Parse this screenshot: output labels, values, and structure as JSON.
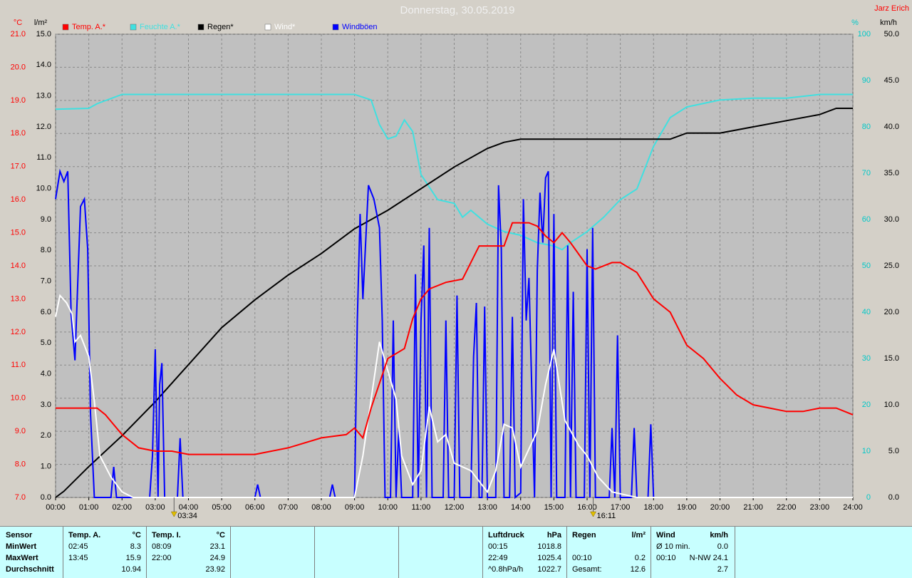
{
  "chart_data": {
    "type": "line",
    "title": "Donnerstag, 30.05.2019",
    "author": "Jarz Erich",
    "y_unit": "°C",
    "y2_unit": "%",
    "y3_unit": "l/m²",
    "y4_unit": "km/h",
    "xlim": [
      0,
      1440
    ],
    "xticks": [
      {
        "value": 0,
        "label": "00:00"
      },
      {
        "value": 60,
        "label": "01:00"
      },
      {
        "value": 120,
        "label": "02:00"
      },
      {
        "value": 180,
        "label": "03:00"
      },
      {
        "value": 240,
        "label": "04:00"
      },
      {
        "value": 300,
        "label": "05:00"
      },
      {
        "value": 360,
        "label": "06:00"
      },
      {
        "value": 420,
        "label": "07:00"
      },
      {
        "value": 480,
        "label": "08:00"
      },
      {
        "value": 540,
        "label": "09:00"
      },
      {
        "value": 600,
        "label": "10:00"
      },
      {
        "value": 660,
        "label": "11:00"
      },
      {
        "value": 720,
        "label": "12:00"
      },
      {
        "value": 780,
        "label": "13:00"
      },
      {
        "value": 840,
        "label": "14:00"
      },
      {
        "value": 900,
        "label": "15:00"
      },
      {
        "value": 960,
        "label": "16:00"
      },
      {
        "value": 1020,
        "label": "17:00"
      },
      {
        "value": 1080,
        "label": "18:00"
      },
      {
        "value": 1140,
        "label": "19:00"
      },
      {
        "value": 1200,
        "label": "20:00"
      },
      {
        "value": 1260,
        "label": "21:00"
      },
      {
        "value": 1320,
        "label": "22:00"
      },
      {
        "value": 1380,
        "label": "23:00"
      },
      {
        "value": 1440,
        "label": "24:00"
      }
    ],
    "ylim": [
      7,
      21
    ],
    "yticks": [
      {
        "value": 7,
        "label": "7.0"
      },
      {
        "value": 8,
        "label": "8.0"
      },
      {
        "value": 9,
        "label": "9.0"
      },
      {
        "value": 10,
        "label": "10.0"
      },
      {
        "value": 11,
        "label": "11.0"
      },
      {
        "value": 12,
        "label": "12.0"
      },
      {
        "value": 13,
        "label": "13.0"
      },
      {
        "value": 14,
        "label": "14.0"
      },
      {
        "value": 15,
        "label": "15.0"
      },
      {
        "value": 16,
        "label": "16.0"
      },
      {
        "value": 17,
        "label": "17.0"
      },
      {
        "value": 18,
        "label": "18.0"
      },
      {
        "value": 19,
        "label": "19.0"
      },
      {
        "value": 20,
        "label": "20.0"
      },
      {
        "value": 21,
        "label": "21.0"
      }
    ],
    "y2lim": [
      0,
      100
    ],
    "y2ticks": [
      0,
      10,
      20,
      30,
      40,
      50,
      60,
      70,
      80,
      90,
      100
    ],
    "y3lim": [
      0,
      15
    ],
    "y3ticks": [
      {
        "value": 0,
        "label": "0.0"
      },
      {
        "value": 1,
        "label": "1.0"
      },
      {
        "value": 2,
        "label": "2.0"
      },
      {
        "value": 3,
        "label": "3.0"
      },
      {
        "value": 4,
        "label": "4.0"
      },
      {
        "value": 5,
        "label": "5.0"
      },
      {
        "value": 6,
        "label": "6.0"
      },
      {
        "value": 7,
        "label": "7.0"
      },
      {
        "value": 8,
        "label": "8.0"
      },
      {
        "value": 9,
        "label": "9.0"
      },
      {
        "value": 10,
        "label": "10.0"
      },
      {
        "value": 11,
        "label": "11.0"
      },
      {
        "value": 12,
        "label": "12.0"
      },
      {
        "value": 13,
        "label": "13.0"
      },
      {
        "value": 14,
        "label": "14.0"
      },
      {
        "value": 15,
        "label": "15.0"
      }
    ],
    "y4lim": [
      0,
      50
    ],
    "y4ticks": [
      {
        "value": 0,
        "label": "0.0"
      },
      {
        "value": 5,
        "label": "5.0"
      },
      {
        "value": 10,
        "label": "10.0"
      },
      {
        "value": 15,
        "label": "15.0"
      },
      {
        "value": 20,
        "label": "20.0"
      },
      {
        "value": 25,
        "label": "25.0"
      },
      {
        "value": 30,
        "label": "30.0"
      },
      {
        "value": 35,
        "label": "35.0"
      },
      {
        "value": 40,
        "label": "40.0"
      },
      {
        "value": 45,
        "label": "45.0"
      },
      {
        "value": 50,
        "label": "50.0"
      }
    ],
    "grid": true,
    "series": [
      {
        "name": "Temp. A.*",
        "color": "#ff0000",
        "axis": "y",
        "x": [
          0,
          60,
          75,
          90,
          120,
          150,
          180,
          210,
          240,
          360,
          420,
          480,
          525,
          540,
          555,
          570,
          600,
          630,
          645,
          660,
          675,
          705,
          735,
          765,
          795,
          810,
          825,
          840,
          855,
          870,
          885,
          900,
          915,
          930,
          960,
          975,
          1005,
          1020,
          1050,
          1080,
          1110,
          1140,
          1170,
          1200,
          1230,
          1260,
          1290,
          1320,
          1350,
          1380,
          1410,
          1440
        ],
        "values": [
          9.7,
          9.7,
          9.7,
          9.5,
          8.9,
          8.5,
          8.4,
          8.4,
          8.3,
          8.3,
          8.5,
          8.8,
          8.9,
          9.1,
          8.8,
          9.7,
          11.2,
          11.5,
          12.4,
          13.0,
          13.3,
          13.5,
          13.6,
          14.6,
          14.6,
          14.6,
          15.3,
          15.3,
          15.3,
          15.2,
          14.9,
          14.7,
          15.0,
          14.7,
          14.0,
          13.9,
          14.1,
          14.1,
          13.8,
          13.0,
          12.6,
          11.6,
          11.2,
          10.6,
          10.1,
          9.8,
          9.7,
          9.6,
          9.6,
          9.7,
          9.7,
          9.5
        ]
      },
      {
        "name": "Feuchte A.*",
        "color": "#40e0e0",
        "axis": "y2",
        "x": [
          0,
          60,
          75,
          120,
          180,
          540,
          570,
          585,
          600,
          615,
          630,
          645,
          660,
          690,
          720,
          735,
          750,
          765,
          780,
          810,
          840,
          870,
          900,
          915,
          930,
          960,
          990,
          1020,
          1050,
          1080,
          1110,
          1140,
          1200,
          1260,
          1320,
          1380,
          1440
        ],
        "values": [
          83.8,
          84,
          85,
          87,
          87,
          87,
          85.8,
          80.5,
          77.4,
          78,
          81.5,
          79,
          69.7,
          64.3,
          63.5,
          60.5,
          62,
          60.5,
          59,
          57.4,
          56.6,
          55,
          54.3,
          53.5,
          55,
          57.4,
          60.5,
          64.3,
          66.6,
          75.8,
          82,
          84.3,
          85.8,
          86.2,
          86.2,
          87,
          87
        ]
      },
      {
        "name": "Regen*",
        "color": "#000000",
        "axis": "y3",
        "x": [
          0,
          15,
          60,
          120,
          180,
          240,
          300,
          360,
          420,
          480,
          540,
          600,
          660,
          720,
          780,
          810,
          840,
          1110,
          1140,
          1200,
          1260,
          1320,
          1380,
          1410,
          1440
        ],
        "values": [
          0,
          0.2,
          1,
          2,
          3.1,
          4.3,
          5.5,
          6.4,
          7.2,
          7.9,
          8.7,
          9.3,
          10,
          10.7,
          11.3,
          11.5,
          11.6,
          11.6,
          11.8,
          11.8,
          12.0,
          12.2,
          12.4,
          12.6,
          12.6
        ]
      },
      {
        "name": "Wind*",
        "color": "#ffffff",
        "axis": "y4",
        "x": [
          0,
          8,
          20,
          30,
          35,
          45,
          60,
          70,
          80,
          100,
          120,
          140,
          540,
          555,
          570,
          585,
          600,
          615,
          625,
          645,
          660,
          675,
          690,
          705,
          720,
          750,
          780,
          795,
          810,
          825,
          840,
          870,
          885,
          900,
          920,
          945,
          960,
          980,
          1005,
          1050,
          1440
        ],
        "values": [
          19.5,
          21.8,
          21,
          19.8,
          16.8,
          17.5,
          15.2,
          10.4,
          4.5,
          2.2,
          0.6,
          0,
          0,
          4.5,
          10.6,
          16.8,
          13.7,
          10.6,
          4.5,
          1.4,
          2.9,
          9.8,
          6,
          6.8,
          3.7,
          2.9,
          0.6,
          2.9,
          7.9,
          7.5,
          3.3,
          7.2,
          12.2,
          16,
          8.3,
          5.6,
          4.5,
          2.2,
          0.6,
          0,
          0
        ]
      },
      {
        "name": "Windböen",
        "color": "#0000ff",
        "axis": "y4",
        "x": [
          0,
          8,
          15,
          22,
          28,
          35,
          45,
          52,
          58,
          63,
          70,
          100,
          105,
          110,
          170,
          175,
          180,
          185,
          188,
          192,
          197,
          220,
          225,
          230,
          360,
          365,
          370,
          495,
          500,
          505,
          540,
          545,
          550,
          555,
          565,
          575,
          585,
          590,
          595,
          605,
          610,
          615,
          620,
          625,
          645,
          650,
          655,
          660,
          665,
          670,
          675,
          680,
          700,
          705,
          710,
          720,
          725,
          730,
          750,
          755,
          760,
          765,
          770,
          775,
          780,
          795,
          800,
          805,
          810,
          820,
          825,
          830,
          840,
          845,
          850,
          855,
          865,
          870,
          875,
          880,
          885,
          890,
          895,
          900,
          905,
          920,
          925,
          930,
          935,
          940,
          955,
          960,
          965,
          970,
          975,
          1000,
          1005,
          1010,
          1015,
          1020,
          1040,
          1045,
          1050,
          1070,
          1075,
          1080,
          1440
        ],
        "values": [
          32.2,
          35.2,
          34.1,
          35.2,
          19.8,
          14.8,
          31.4,
          32.2,
          26.8,
          9.1,
          0,
          0,
          3.3,
          0,
          0,
          4.5,
          16,
          0,
          12.2,
          14.5,
          0,
          0,
          6.4,
          0,
          0,
          1.4,
          0,
          0,
          1.4,
          0,
          0,
          19.1,
          30.6,
          21.4,
          33.7,
          32.2,
          29.1,
          19.1,
          0,
          0,
          19.1,
          0,
          7.5,
          0,
          0,
          24.1,
          0,
          19.1,
          27.2,
          0,
          29.1,
          0,
          0,
          19.1,
          0,
          0,
          21.8,
          0,
          0,
          15.2,
          21,
          0,
          0,
          20.6,
          0,
          0,
          33.7,
          26.8,
          0,
          0,
          19.5,
          0,
          0.5,
          32.2,
          19.1,
          23.7,
          0,
          24.5,
          32.9,
          27.5,
          34.5,
          35.2,
          0,
          30.6,
          0,
          0,
          27.2,
          0,
          22.2,
          0,
          0,
          26.8,
          0,
          29.1,
          0,
          0,
          7.5,
          0,
          17.5,
          0,
          0,
          7.5,
          0,
          0,
          7.9,
          0,
          0
        ]
      }
    ],
    "annotations": [
      {
        "x": 214,
        "text": "03:34"
      },
      {
        "x": 971,
        "text": "16:11"
      }
    ]
  },
  "table": {
    "rows": [
      [
        "Sensor",
        "Temp. A.",
        "°C",
        "Temp. I.",
        "°C",
        "Luftdruck",
        "hPa",
        "Regen",
        "l/m²",
        "Wind",
        "km/h"
      ],
      [
        "MinWert",
        "02:45",
        "8.3",
        "08:09",
        "23.1",
        "00:15",
        "1018.8",
        null,
        null,
        "Ø 10 min.",
        "0.0"
      ],
      [
        "MaxWert",
        "13:45",
        "15.9",
        "22:00",
        "24.9",
        "22:49",
        "1025.4",
        "00:10",
        "0.2",
        "00:10",
        "N-NW 24.1"
      ],
      [
        "Durchschnitt",
        null,
        "10.94",
        null,
        "23.92",
        "^0.8hPa/h",
        "1022.7",
        "Gesamt:",
        "12.6",
        null,
        "2.7"
      ]
    ]
  }
}
